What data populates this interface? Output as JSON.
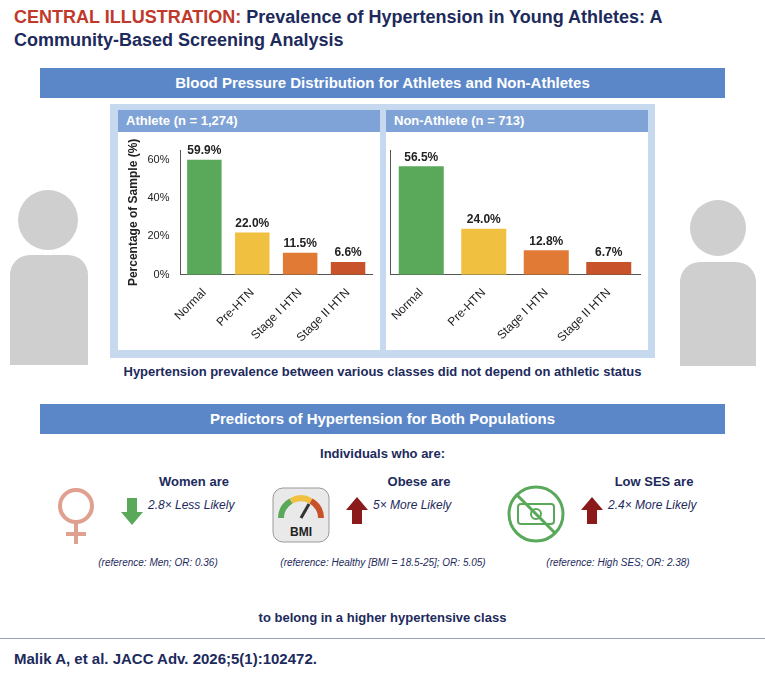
{
  "header": {
    "label": "CENTRAL ILLUSTRATION:",
    "title": "Prevalence of Hypertension in Young Athletes: A Community-Based Screening Analysis"
  },
  "section1": {
    "title": "Blood Pressure Distribution for Athletes and Non-Athletes"
  },
  "chart_data": [
    {
      "type": "bar",
      "title": "Athlete (n = 1,274)",
      "y_label": "Percentage of Sample (%)",
      "categories": [
        "Normal",
        "Pre-HTN",
        "Stage I HTN",
        "Stage II HTN"
      ],
      "values": [
        59.9,
        22.0,
        11.5,
        6.6
      ],
      "value_labels": [
        "59.9%",
        "22.0%",
        "11.5%",
        "6.6%"
      ],
      "colors": [
        "#5aa85a",
        "#f0c040",
        "#e07a35",
        "#c8532a"
      ],
      "ylim": [
        0,
        65
      ],
      "yticks": [
        {
          "value": 0,
          "label": "0%"
        },
        {
          "value": 20,
          "label": "20%"
        },
        {
          "value": 40,
          "label": "40%"
        },
        {
          "value": 60,
          "label": "60%"
        }
      ],
      "grid": false,
      "data_labels": true
    },
    {
      "type": "bar",
      "title": "Non-Athlete (n = 713)",
      "categories": [
        "Normal",
        "Pre-HTN",
        "Stage I HTN",
        "Stage II HTN"
      ],
      "values": [
        56.5,
        24.0,
        12.8,
        6.7
      ],
      "value_labels": [
        "56.5%",
        "24.0%",
        "12.8%",
        "6.7%"
      ],
      "colors": [
        "#5aa85a",
        "#f0c040",
        "#e07a35",
        "#c8532a"
      ],
      "ylim": [
        0,
        65
      ],
      "grid": false,
      "data_labels": true,
      "tick_labels": "x"
    }
  ],
  "note": "Hypertension prevalence between various classes did not depend on athletic status",
  "section2": {
    "title": "Predictors of Hypertension for Both Populations",
    "intro": "Individuals who are:",
    "predictors": [
      {
        "heading": "Women are",
        "effect": "2.8× Less Likely",
        "reference": "(reference: Men; OR: 0.36)"
      },
      {
        "heading": "Obese are",
        "icon_label": "BMI",
        "effect": "5× More Likely",
        "reference": "(reference: Healthy [BMI = 18.5-25]; OR: 5.05)"
      },
      {
        "heading": "Low SES are",
        "effect": "2.4× More Likely",
        "reference": "(reference: High SES; OR: 2.38)"
      }
    ],
    "outro": "to belong in a higher hypertensive class"
  },
  "citation": "Malik A, et al. JACC Adv. 2026;5(1):102472."
}
